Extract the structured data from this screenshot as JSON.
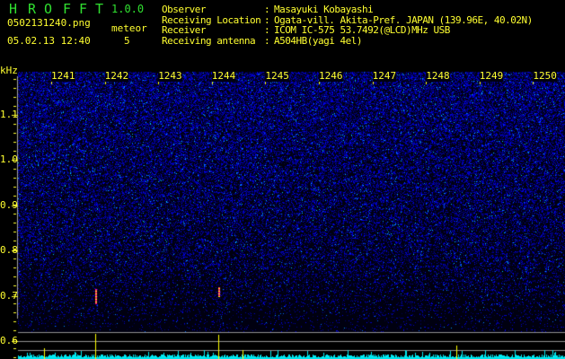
{
  "app": {
    "name_letters": [
      "H",
      "R",
      "O",
      "F",
      "F",
      "T"
    ],
    "version": "1.0.0"
  },
  "file": {
    "name": "0502131240.png",
    "datetime": "05.02.13 12:40"
  },
  "meteor": {
    "label": "meteor",
    "count": "5"
  },
  "info": [
    {
      "label": "Observer",
      "value": "Masayuki Kobayashi"
    },
    {
      "label": "Receiving Location",
      "value": "Ogata-vill. Akita-Pref. JAPAN (139.96E, 40.02N)"
    },
    {
      "label": "Receiver",
      "value": "ICOM IC-575 53.7492(@LCD)MHz USB"
    },
    {
      "label": "Receiving antenna",
      "value": "A504HB(yagi 4el)"
    }
  ],
  "axis": {
    "unit": "kHz",
    "freq_labels": [
      "1.1",
      "1.0",
      "0.9",
      "0.8",
      "0.7",
      "0.6"
    ],
    "time_labels": [
      "1241",
      "1242",
      "1243",
      "1244",
      "1245",
      "1246",
      "1247",
      "1248",
      "1249",
      "1250"
    ]
  },
  "colors": {
    "text": "#ffff30",
    "logo": "#30e030",
    "noise": "#2030ff",
    "echo": "#ff2080",
    "level": "#00ffff",
    "spike": "#ffff00"
  },
  "meteor_echoes": [
    {
      "time": "1242",
      "freq_khz_range": [
        0.69,
        0.72
      ]
    },
    {
      "time": "1244",
      "freq_khz_range": [
        0.7,
        0.72
      ]
    }
  ]
}
